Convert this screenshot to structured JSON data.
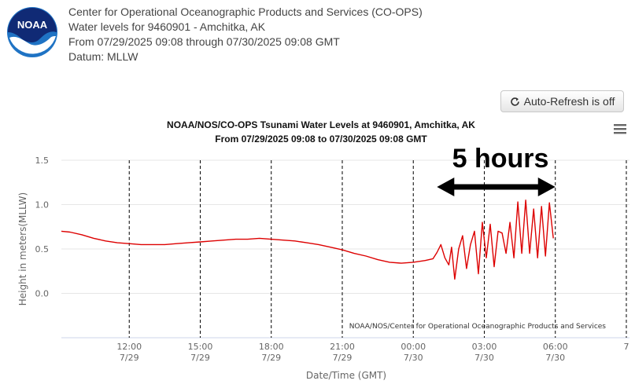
{
  "header": {
    "org": "Center for Operational Oceanographic Products and Services (CO-OPS)",
    "station": "Water levels for 9460901 - Amchitka, AK",
    "range": "From 07/29/2025 09:08 through 07/30/2025 09:08 GMT",
    "datum": "Datum: MLLW",
    "logo_text": "NOAA"
  },
  "toolbar": {
    "refresh_label": "Auto-Refresh is off",
    "refresh_icon": "refresh-icon",
    "menu_icon": "hamburger-menu-icon"
  },
  "chart_data": {
    "type": "line",
    "title": "NOAA/NOS/CO-OPS Tsunami Water Levels at 9460901, Amchitka, AK",
    "subtitle": "From 07/29/2025 09:08 to 07/30/2025 09:08 GMT",
    "xlabel": "Date/Time (GMT)",
    "ylabel": "Height in meters(MLLW)",
    "credit": "NOAA/NOS/Center for Operational Oceanographic Products and Services",
    "ylim": [
      -0.5,
      1.5
    ],
    "xlim": [
      "2025-07-29 09:08",
      "2025-07-30 09:08"
    ],
    "y_ticks": [
      "1.5",
      "1.0",
      "0.5",
      "0.0"
    ],
    "y_tick_values": [
      1.5,
      1.0,
      0.5,
      0.0
    ],
    "x_ticks": [
      {
        "time": "12:00",
        "date": "7/29",
        "at": "2025-07-29 12:00"
      },
      {
        "time": "15:00",
        "date": "7/29",
        "at": "2025-07-29 15:00"
      },
      {
        "time": "18:00",
        "date": "7/29",
        "at": "2025-07-29 18:00"
      },
      {
        "time": "21:00",
        "date": "7/29",
        "at": "2025-07-29 21:00"
      },
      {
        "time": "00:00",
        "date": "7/30",
        "at": "2025-07-30 00:00"
      },
      {
        "time": "03:00",
        "date": "7/30",
        "at": "2025-07-30 03:00"
      },
      {
        "time": "06:00",
        "date": "7/30",
        "at": "2025-07-30 06:00"
      },
      {
        "time": "7",
        "date": "",
        "at": "2025-07-30 09:00"
      }
    ],
    "grid": "vertical dashed at ticks, horizontal light",
    "series": [
      {
        "color": "#dd0000",
        "points": [
          [
            "2025-07-29 09:08",
            0.7
          ],
          [
            "2025-07-29 09:30",
            0.69
          ],
          [
            "2025-07-29 10:00",
            0.66
          ],
          [
            "2025-07-29 10:30",
            0.62
          ],
          [
            "2025-07-29 11:00",
            0.59
          ],
          [
            "2025-07-29 11:30",
            0.57
          ],
          [
            "2025-07-29 12:00",
            0.56
          ],
          [
            "2025-07-29 12:30",
            0.55
          ],
          [
            "2025-07-29 13:00",
            0.55
          ],
          [
            "2025-07-29 13:30",
            0.55
          ],
          [
            "2025-07-29 14:00",
            0.56
          ],
          [
            "2025-07-29 14:30",
            0.57
          ],
          [
            "2025-07-29 15:00",
            0.58
          ],
          [
            "2025-07-29 15:30",
            0.59
          ],
          [
            "2025-07-29 16:00",
            0.6
          ],
          [
            "2025-07-29 16:30",
            0.61
          ],
          [
            "2025-07-29 17:00",
            0.61
          ],
          [
            "2025-07-29 17:30",
            0.62
          ],
          [
            "2025-07-29 18:00",
            0.61
          ],
          [
            "2025-07-29 18:30",
            0.6
          ],
          [
            "2025-07-29 19:00",
            0.59
          ],
          [
            "2025-07-29 19:30",
            0.57
          ],
          [
            "2025-07-29 20:00",
            0.55
          ],
          [
            "2025-07-29 20:30",
            0.52
          ],
          [
            "2025-07-29 21:00",
            0.49
          ],
          [
            "2025-07-29 21:30",
            0.45
          ],
          [
            "2025-07-29 22:00",
            0.42
          ],
          [
            "2025-07-29 22:30",
            0.38
          ],
          [
            "2025-07-29 23:00",
            0.35
          ],
          [
            "2025-07-29 23:30",
            0.34
          ],
          [
            "2025-07-30 00:00",
            0.35
          ],
          [
            "2025-07-30 00:30",
            0.37
          ],
          [
            "2025-07-30 00:50",
            0.39
          ],
          [
            "2025-07-30 01:00",
            0.46
          ],
          [
            "2025-07-30 01:10",
            0.55
          ],
          [
            "2025-07-30 01:20",
            0.4
          ],
          [
            "2025-07-30 01:30",
            0.32
          ],
          [
            "2025-07-30 01:37",
            0.52
          ],
          [
            "2025-07-30 01:45",
            0.16
          ],
          [
            "2025-07-30 01:55",
            0.5
          ],
          [
            "2025-07-30 02:05",
            0.65
          ],
          [
            "2025-07-30 02:15",
            0.28
          ],
          [
            "2025-07-30 02:25",
            0.55
          ],
          [
            "2025-07-30 02:35",
            0.7
          ],
          [
            "2025-07-30 02:45",
            0.22
          ],
          [
            "2025-07-30 02:55",
            0.8
          ],
          [
            "2025-07-30 03:05",
            0.4
          ],
          [
            "2025-07-30 03:15",
            0.78
          ],
          [
            "2025-07-30 03:25",
            0.3
          ],
          [
            "2025-07-30 03:35",
            0.7
          ],
          [
            "2025-07-30 03:45",
            0.68
          ],
          [
            "2025-07-30 03:55",
            0.45
          ],
          [
            "2025-07-30 04:05",
            0.8
          ],
          [
            "2025-07-30 04:15",
            0.4
          ],
          [
            "2025-07-30 04:25",
            1.03
          ],
          [
            "2025-07-30 04:35",
            0.45
          ],
          [
            "2025-07-30 04:45",
            1.05
          ],
          [
            "2025-07-30 04:55",
            0.45
          ],
          [
            "2025-07-30 05:05",
            0.95
          ],
          [
            "2025-07-30 05:15",
            0.4
          ],
          [
            "2025-07-30 05:25",
            0.98
          ],
          [
            "2025-07-30 05:35",
            0.42
          ],
          [
            "2025-07-30 05:45",
            1.02
          ],
          [
            "2025-07-30 05:55",
            0.62
          ]
        ]
      }
    ],
    "annotation": {
      "text": "5 hours",
      "from": "2025-07-30 01:00",
      "to": "2025-07-30 06:00"
    }
  }
}
